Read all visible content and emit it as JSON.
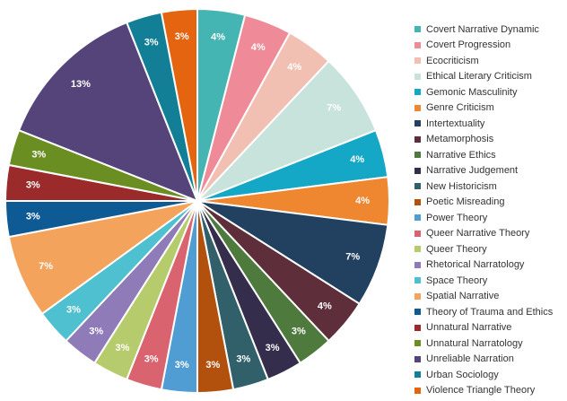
{
  "chart_data": {
    "type": "pie",
    "title": "",
    "legend_position": "right",
    "slices": [
      {
        "label": "Covert Narrative Dynamic",
        "value": 4,
        "display": "4%",
        "color": "#45b5b3"
      },
      {
        "label": "Covert Progression",
        "value": 4,
        "display": "4%",
        "color": "#ef8a98"
      },
      {
        "label": "Ecocriticism",
        "value": 4,
        "display": "4%",
        "color": "#f2c0b3"
      },
      {
        "label": "Ethical Literary Criticism",
        "value": 7,
        "display": "7%",
        "color": "#c7e3dc"
      },
      {
        "label": "Gemonic Masculinity",
        "value": 4,
        "display": "4%",
        "color": "#15a7c6"
      },
      {
        "label": "Genre Criticism",
        "value": 4,
        "display": "4%",
        "color": "#ef8731"
      },
      {
        "label": "Intertextuality",
        "value": 7,
        "display": "7%",
        "color": "#22405f"
      },
      {
        "label": "Metamorphosis",
        "value": 4,
        "display": "4%",
        "color": "#5e2f3a"
      },
      {
        "label": "Narrative Ethics",
        "value": 3,
        "display": "3%",
        "color": "#4e7a3e"
      },
      {
        "label": "Narrative Judgement",
        "value": 3,
        "display": "3%",
        "color": "#352d4c"
      },
      {
        "label": "New Historicism",
        "value": 3,
        "display": "3%",
        "color": "#31606a"
      },
      {
        "label": "Poetic Misreading",
        "value": 3,
        "display": "3%",
        "color": "#b2510e"
      },
      {
        "label": "Power Theory",
        "value": 3,
        "display": "3%",
        "color": "#4f9dd2"
      },
      {
        "label": "Queer Narrative Theory",
        "value": 3,
        "display": "3%",
        "color": "#d9646f"
      },
      {
        "label": "Queer Theory",
        "value": 3,
        "display": "3%",
        "color": "#b6cb6b"
      },
      {
        "label": "Rhetorical Narratology",
        "value": 3,
        "display": "3%",
        "color": "#8e7bb7"
      },
      {
        "label": "Space Theory",
        "value": 3,
        "display": "3%",
        "color": "#4fc0cf"
      },
      {
        "label": "Spatial Narrative",
        "value": 7,
        "display": "7%",
        "color": "#f4a35c"
      },
      {
        "label": "Theory of Trauma and Ethics",
        "value": 3,
        "display": "3%",
        "color": "#0e5a94"
      },
      {
        "label": "Unnatural Narrative",
        "value": 3,
        "display": "3%",
        "color": "#9b2a2a"
      },
      {
        "label": "Unnatural Narratology",
        "value": 3,
        "display": "3%",
        "color": "#6b8e23"
      },
      {
        "label": "Unreliable Narration",
        "value": 13,
        "display": "13%",
        "color": "#54447a"
      },
      {
        "label": "Urban Sociology",
        "value": 3,
        "display": "3%",
        "color": "#127f96"
      },
      {
        "label": "Violence Triangle Theory",
        "value": 3,
        "display": "3%",
        "color": "#e5640f"
      }
    ]
  }
}
